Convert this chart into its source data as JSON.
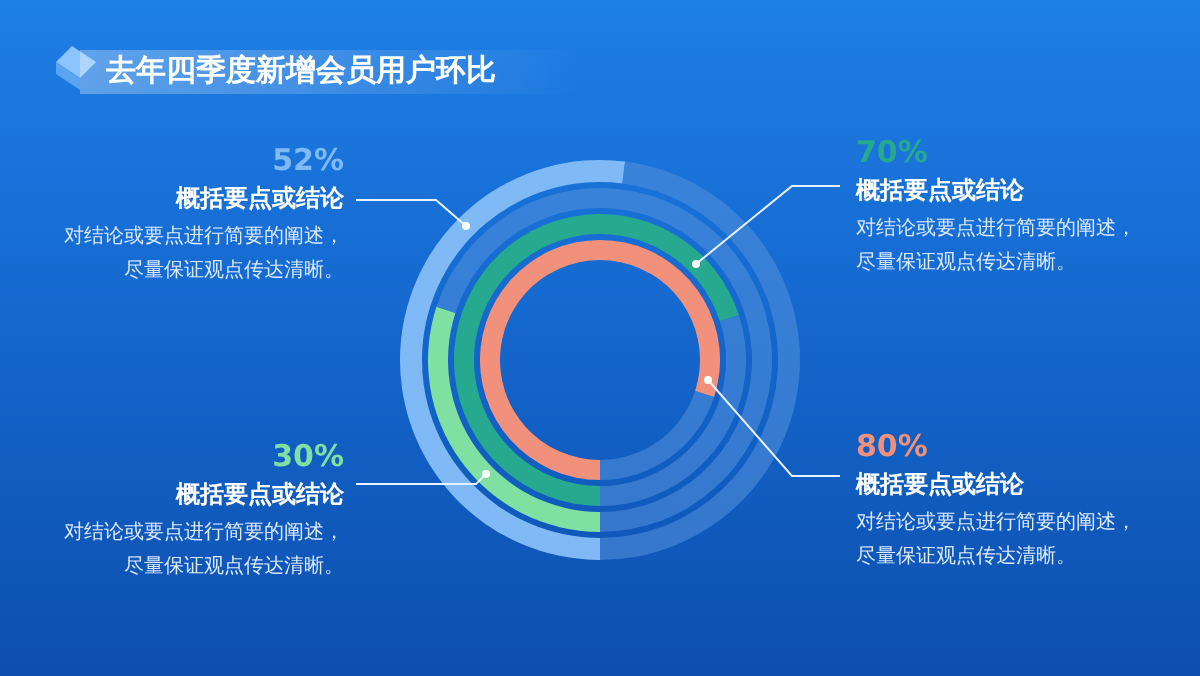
{
  "chart_data": [
    {
      "type": "donut",
      "title": "去年四季度新增会员用户环比",
      "categories": [
        "概括要点或结论",
        null
      ],
      "values": [
        52,
        48
      ],
      "colors": [
        "#7fbaf6",
        "#4f8edb"
      ],
      "value_labels": [
        "52%",
        null
      ],
      "annotations": [
        "对结论或要点进行简要的阐述，尽量保证观点传达清晰。"
      ]
    },
    {
      "type": "donut",
      "categories": [
        "概括要点或结论",
        null
      ],
      "values": [
        30,
        70
      ],
      "colors": [
        "#7fe0a2",
        "#4f8edb"
      ],
      "value_labels": [
        "30%",
        null
      ],
      "annotations": [
        "对结论或要点进行简要的阐述，尽量保证观点传达清晰。"
      ]
    },
    {
      "type": "donut",
      "categories": [
        "概括要点或结论",
        null
      ],
      "values": [
        70,
        30
      ],
      "colors": [
        "#27a98f",
        "#4f8edb"
      ],
      "value_labels": [
        "70%",
        null
      ],
      "annotations": [
        "对结论或要点进行简要的阐述，尽量保证观点传达清晰。"
      ]
    },
    {
      "type": "donut",
      "categories": [
        "概括要点或结论",
        null
      ],
      "values": [
        80,
        20
      ],
      "colors": [
        "#f2917b",
        "#4f8edb"
      ],
      "value_labels": [
        "80%",
        null
      ],
      "annotations": [
        "对结论或要点进行简要的阐述，尽量保证观点传达清晰。"
      ]
    }
  ]
}
